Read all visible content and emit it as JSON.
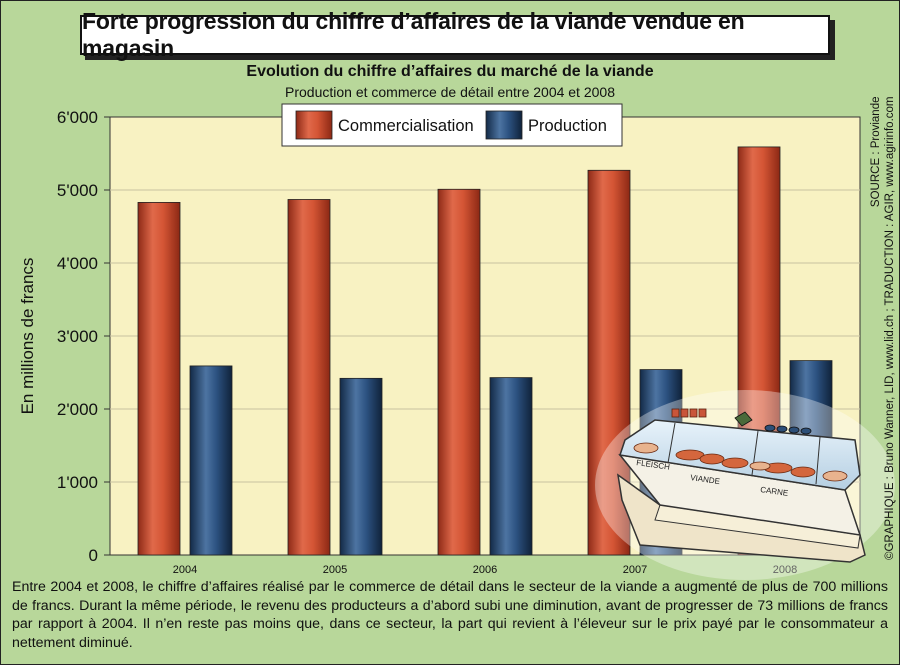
{
  "header": {
    "title": "Forte progression du chiffre d’affaires de la viande vendue en magasin",
    "subtitle": "Evolution du chiffre d’affaires du marché de la viande",
    "subsubtitle": "Production et commerce de détail entre 2004 et 2008"
  },
  "credits": {
    "line1": "SOURCE : Proviande",
    "line2": "©GRAPHIQUE : Bruno Wanner, LID, www.lid.ch ; TRADUCTION : AGIR, www.agirinfo.com"
  },
  "footer": {
    "text": "Entre 2004 et 2008, le chiffre d’affaires réalisé par le commerce de détail dans le secteur de la viande a augmenté de plus de 700 millions de francs. Durant la même période, le revenu des producteurs a d’abord subi une diminution, avant de progresser de 73 millions de francs par rapport à 2004. Il n’en reste pas moins que, dans ce secteur, la part qui revient à l’éleveur sur le prix payé par le consommateur a nettement diminué."
  },
  "illustration": {
    "labels": [
      "FLEISCH",
      "VIANDE",
      "CARNE"
    ]
  },
  "colors": {
    "background": "#b8d79a",
    "plot_bg": "#f8f2c2",
    "commercialisation": "#c9442c",
    "production": "#1f3f66"
  },
  "chart_data": {
    "type": "bar",
    "categories": [
      "2004",
      "2005",
      "2006",
      "2007",
      "2008"
    ],
    "series": [
      {
        "name": "Commercialisation",
        "values": [
          4830,
          4870,
          5010,
          5270,
          5590
        ]
      },
      {
        "name": "Production",
        "values": [
          2590,
          2420,
          2430,
          2540,
          2663
        ]
      }
    ],
    "ylabel": "En millions de francs",
    "ylim": [
      0,
      6000
    ],
    "yticks": [
      "0",
      "1'000",
      "2'000",
      "3'000",
      "4'000",
      "5'000",
      "6'000"
    ],
    "grid": true,
    "legend": "top-center"
  }
}
